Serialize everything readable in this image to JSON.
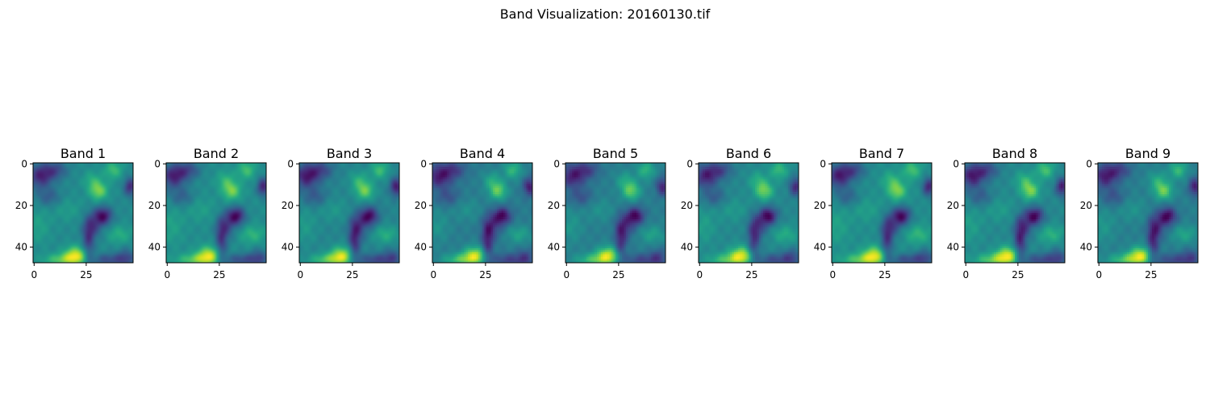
{
  "figure": {
    "suptitle": "Band Visualization: 20160130.tif"
  },
  "chart_data": {
    "type": "heatmap",
    "colormap": "viridis",
    "image_size": [
      48,
      48
    ],
    "xticks": [
      0,
      25
    ],
    "yticks": [
      0,
      20,
      40
    ],
    "xlim": [
      -0.5,
      47.5
    ],
    "ylim": [
      47.5,
      -0.5
    ],
    "grid": false,
    "panels": [
      {
        "title": "Band 1",
        "smooth": true
      },
      {
        "title": "Band 2",
        "smooth": true
      },
      {
        "title": "Band 3",
        "smooth": true
      },
      {
        "title": "Band 4",
        "smooth": false
      },
      {
        "title": "Band 5",
        "smooth": false
      },
      {
        "title": "Band 6",
        "smooth": false
      },
      {
        "title": "Band 7",
        "smooth": true
      },
      {
        "title": "Band 8",
        "smooth": false
      },
      {
        "title": "Band 9",
        "smooth": false
      }
    ],
    "features": [
      {
        "x": 3,
        "y": 6,
        "sx": 4,
        "sy": 4,
        "amp": -0.55
      },
      {
        "x": 10,
        "y": 3,
        "sx": 4,
        "sy": 3,
        "amp": -0.35
      },
      {
        "x": 7,
        "y": 16,
        "sx": 4,
        "sy": 3,
        "amp": -0.25
      },
      {
        "x": 31,
        "y": 13,
        "sx": 3,
        "sy": 3,
        "amp": 0.5
      },
      {
        "x": 38,
        "y": 3,
        "sx": 3,
        "sy": 3,
        "amp": 0.35
      },
      {
        "x": 28,
        "y": 8,
        "sx": 3,
        "sy": 3,
        "amp": 0.25
      },
      {
        "x": 46,
        "y": 11,
        "sx": 2,
        "sy": 3,
        "amp": -0.55
      },
      {
        "x": 33,
        "y": 25,
        "sx": 3,
        "sy": 3,
        "amp": -0.65
      },
      {
        "x": 28,
        "y": 30,
        "sx": 3,
        "sy": 4,
        "amp": -0.35
      },
      {
        "x": 20,
        "y": 44,
        "sx": 4,
        "sy": 3,
        "amp": 0.7
      },
      {
        "x": 13,
        "y": 46,
        "sx": 6,
        "sy": 2,
        "amp": 0.4
      },
      {
        "x": 26,
        "y": 38,
        "sx": 2,
        "sy": 7,
        "amp": -0.45
      },
      {
        "x": 41,
        "y": 34,
        "sx": 4,
        "sy": 3,
        "amp": 0.25
      },
      {
        "x": 36,
        "y": 46,
        "sx": 6,
        "sy": 2,
        "amp": -0.35
      },
      {
        "x": 44,
        "y": 45,
        "sx": 3,
        "sy": 3,
        "amp": -0.3
      },
      {
        "x": 2,
        "y": 30,
        "sx": 4,
        "sy": 6,
        "amp": 0.15
      },
      {
        "x": 16,
        "y": 22,
        "sx": 5,
        "sy": 4,
        "amp": 0.12
      }
    ]
  }
}
